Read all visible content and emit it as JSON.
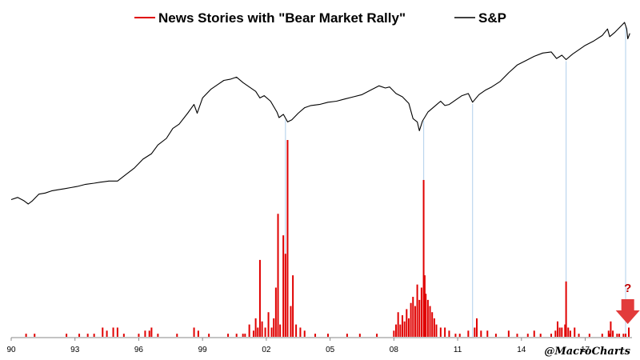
{
  "chart_data": {
    "type": "line+bar",
    "x_range": [
      1990.0,
      2019.2
    ],
    "xtick_labels": [
      "90",
      "93",
      "96",
      "99",
      "02",
      "05",
      "08",
      "11",
      "14",
      "17"
    ],
    "xtick_years": [
      1990,
      1993,
      1996,
      1999,
      2002,
      2005,
      2008,
      2011,
      2014,
      2017
    ],
    "legend_position": "top-center",
    "grid": false,
    "colors": {
      "news": "#e00000",
      "sp": "#000000",
      "connector": "#bcd6ee",
      "arrow": "#e23b3b"
    },
    "series": [
      {
        "name": "News Stories with \"Bear Market Rally\"",
        "kind": "bar",
        "color": "#e00000",
        "y_axis_labeled": false,
        "points": [
          [
            1990.7,
            1
          ],
          [
            1991.1,
            1
          ],
          [
            1992.6,
            1
          ],
          [
            1993.2,
            1
          ],
          [
            1993.6,
            1
          ],
          [
            1993.9,
            1
          ],
          [
            1994.3,
            3
          ],
          [
            1994.5,
            2
          ],
          [
            1994.8,
            3
          ],
          [
            1995.0,
            3
          ],
          [
            1995.3,
            1
          ],
          [
            1996.0,
            1
          ],
          [
            1996.3,
            2
          ],
          [
            1996.5,
            2
          ],
          [
            1996.6,
            3
          ],
          [
            1996.9,
            1
          ],
          [
            1997.8,
            1
          ],
          [
            1998.6,
            3
          ],
          [
            1998.8,
            2
          ],
          [
            1999.3,
            1
          ],
          [
            2000.2,
            1
          ],
          [
            2000.6,
            1
          ],
          [
            2000.9,
            1
          ],
          [
            2001.0,
            1
          ],
          [
            2001.2,
            4
          ],
          [
            2001.4,
            2
          ],
          [
            2001.5,
            6
          ],
          [
            2001.6,
            3
          ],
          [
            2001.7,
            25
          ],
          [
            2001.8,
            5
          ],
          [
            2001.95,
            3
          ],
          [
            2002.1,
            8
          ],
          [
            2002.25,
            3
          ],
          [
            2002.35,
            6
          ],
          [
            2002.45,
            16
          ],
          [
            2002.55,
            40
          ],
          [
            2002.65,
            4
          ],
          [
            2002.8,
            33
          ],
          [
            2002.9,
            27
          ],
          [
            2003.0,
            64
          ],
          [
            2003.15,
            10
          ],
          [
            2003.25,
            20
          ],
          [
            2003.4,
            4
          ],
          [
            2003.6,
            3
          ],
          [
            2003.8,
            2
          ],
          [
            2004.3,
            1
          ],
          [
            2004.9,
            1
          ],
          [
            2005.8,
            1
          ],
          [
            2006.4,
            1
          ],
          [
            2007.2,
            1
          ],
          [
            2008.0,
            2
          ],
          [
            2008.1,
            4
          ],
          [
            2008.2,
            8
          ],
          [
            2008.3,
            4
          ],
          [
            2008.4,
            7
          ],
          [
            2008.5,
            5
          ],
          [
            2008.6,
            9
          ],
          [
            2008.7,
            6
          ],
          [
            2008.8,
            11
          ],
          [
            2008.9,
            13
          ],
          [
            2009.0,
            10
          ],
          [
            2009.1,
            17
          ],
          [
            2009.2,
            12
          ],
          [
            2009.3,
            16
          ],
          [
            2009.4,
            51
          ],
          [
            2009.45,
            20
          ],
          [
            2009.5,
            14
          ],
          [
            2009.6,
            12
          ],
          [
            2009.7,
            10
          ],
          [
            2009.8,
            8
          ],
          [
            2009.9,
            6
          ],
          [
            2010.0,
            4
          ],
          [
            2010.2,
            3
          ],
          [
            2010.4,
            3
          ],
          [
            2010.6,
            2
          ],
          [
            2010.9,
            1
          ],
          [
            2011.1,
            1
          ],
          [
            2011.5,
            2
          ],
          [
            2011.8,
            3
          ],
          [
            2011.9,
            6
          ],
          [
            2012.1,
            2
          ],
          [
            2012.4,
            2
          ],
          [
            2012.8,
            1
          ],
          [
            2013.4,
            2
          ],
          [
            2013.8,
            1
          ],
          [
            2014.3,
            1
          ],
          [
            2014.6,
            2
          ],
          [
            2014.9,
            1
          ],
          [
            2015.4,
            1
          ],
          [
            2015.6,
            2
          ],
          [
            2015.7,
            5
          ],
          [
            2015.8,
            3
          ],
          [
            2015.9,
            3
          ],
          [
            2016.05,
            4
          ],
          [
            2016.1,
            18
          ],
          [
            2016.2,
            3
          ],
          [
            2016.3,
            2
          ],
          [
            2016.5,
            3
          ],
          [
            2016.7,
            1
          ],
          [
            2017.2,
            1
          ],
          [
            2017.8,
            1
          ],
          [
            2018.1,
            2
          ],
          [
            2018.15,
            1
          ],
          [
            2018.2,
            5
          ],
          [
            2018.3,
            2
          ],
          [
            2018.5,
            1
          ],
          [
            2018.6,
            1
          ],
          [
            2018.8,
            1
          ],
          [
            2018.9,
            1
          ],
          [
            2019.05,
            3
          ]
        ]
      },
      {
        "name": "S&P",
        "kind": "line",
        "color": "#000000",
        "y_axis_labeled": false,
        "points": [
          [
            1990.0,
            7.1
          ],
          [
            1990.3,
            7.3
          ],
          [
            1990.6,
            7.0
          ],
          [
            1990.8,
            6.7
          ],
          [
            1991.0,
            7.0
          ],
          [
            1991.3,
            7.6
          ],
          [
            1991.6,
            7.7
          ],
          [
            1991.9,
            7.9
          ],
          [
            1992.2,
            8.0
          ],
          [
            1992.5,
            8.1
          ],
          [
            1992.8,
            8.2
          ],
          [
            1993.1,
            8.3
          ],
          [
            1993.5,
            8.5
          ],
          [
            1993.9,
            8.6
          ],
          [
            1994.2,
            8.7
          ],
          [
            1994.6,
            8.8
          ],
          [
            1995.0,
            8.8
          ],
          [
            1995.4,
            9.4
          ],
          [
            1995.8,
            10.0
          ],
          [
            1996.2,
            10.8
          ],
          [
            1996.6,
            11.3
          ],
          [
            1996.9,
            12.1
          ],
          [
            1997.3,
            12.7
          ],
          [
            1997.6,
            13.6
          ],
          [
            1997.9,
            14.0
          ],
          [
            1998.3,
            15.0
          ],
          [
            1998.6,
            15.8
          ],
          [
            1998.75,
            15.0
          ],
          [
            1999.0,
            16.4
          ],
          [
            1999.4,
            17.2
          ],
          [
            1999.7,
            17.6
          ],
          [
            2000.0,
            18.0
          ],
          [
            2000.3,
            18.1
          ],
          [
            2000.6,
            18.3
          ],
          [
            2000.9,
            17.8
          ],
          [
            2001.2,
            17.4
          ],
          [
            2001.5,
            17.0
          ],
          [
            2001.7,
            16.4
          ],
          [
            2001.9,
            16.6
          ],
          [
            2002.2,
            16.1
          ],
          [
            2002.5,
            15.1
          ],
          [
            2002.6,
            14.6
          ],
          [
            2002.8,
            14.9
          ],
          [
            2003.0,
            14.2
          ],
          [
            2003.2,
            14.4
          ],
          [
            2003.5,
            15.0
          ],
          [
            2003.8,
            15.5
          ],
          [
            2004.1,
            15.7
          ],
          [
            2004.5,
            15.8
          ],
          [
            2004.9,
            16.0
          ],
          [
            2005.3,
            16.1
          ],
          [
            2005.7,
            16.3
          ],
          [
            2006.1,
            16.5
          ],
          [
            2006.5,
            16.7
          ],
          [
            2006.9,
            17.1
          ],
          [
            2007.3,
            17.5
          ],
          [
            2007.6,
            17.3
          ],
          [
            2007.8,
            17.4
          ],
          [
            2008.1,
            16.8
          ],
          [
            2008.4,
            16.5
          ],
          [
            2008.7,
            15.9
          ],
          [
            2008.9,
            14.5
          ],
          [
            2009.1,
            14.2
          ],
          [
            2009.2,
            13.4
          ],
          [
            2009.35,
            14.3
          ],
          [
            2009.6,
            15.1
          ],
          [
            2009.9,
            15.6
          ],
          [
            2010.2,
            16.1
          ],
          [
            2010.4,
            15.7
          ],
          [
            2010.6,
            15.8
          ],
          [
            2010.9,
            16.2
          ],
          [
            2011.2,
            16.6
          ],
          [
            2011.5,
            16.8
          ],
          [
            2011.7,
            16.0
          ],
          [
            2012.0,
            16.7
          ],
          [
            2012.3,
            17.1
          ],
          [
            2012.6,
            17.4
          ],
          [
            2013.0,
            17.9
          ],
          [
            2013.4,
            18.7
          ],
          [
            2013.8,
            19.4
          ],
          [
            2014.2,
            19.8
          ],
          [
            2014.6,
            20.2
          ],
          [
            2015.0,
            20.5
          ],
          [
            2015.4,
            20.6
          ],
          [
            2015.65,
            20.0
          ],
          [
            2015.9,
            20.3
          ],
          [
            2016.1,
            19.9
          ],
          [
            2016.4,
            20.4
          ],
          [
            2016.7,
            20.8
          ],
          [
            2017.0,
            21.2
          ],
          [
            2017.4,
            21.6
          ],
          [
            2017.8,
            22.1
          ],
          [
            2018.05,
            22.7
          ],
          [
            2018.15,
            22.0
          ],
          [
            2018.4,
            22.4
          ],
          [
            2018.7,
            23.0
          ],
          [
            2018.85,
            23.3
          ],
          [
            2018.95,
            22.7
          ],
          [
            2019.0,
            21.8
          ],
          [
            2019.1,
            22.3
          ]
        ]
      }
    ],
    "connector_years": [
      2002.9,
      2009.4,
      2011.7,
      2016.1,
      2018.9
    ],
    "annotations": [
      {
        "kind": "arrow",
        "x": 2019.0,
        "color": "#e23b3b"
      },
      {
        "kind": "text",
        "text": "?",
        "x": 2019.0,
        "color": "#c00000"
      }
    ]
  },
  "legend": {
    "news_label": "News Stories with \"Bear Market Rally\"",
    "sp_label": "S&P"
  },
  "watermark": "@MacroCharts",
  "question_mark": "?"
}
